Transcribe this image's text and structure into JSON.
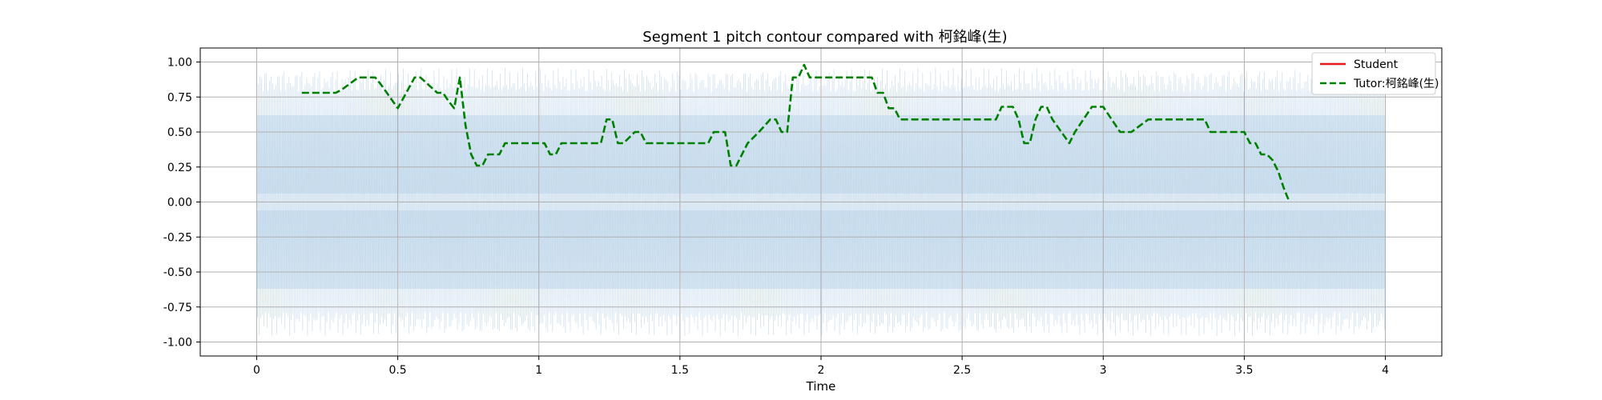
{
  "chart_data": {
    "type": "line",
    "title": "Segment 1 pitch contour compared with 柯銘峰(生)",
    "xlabel": "Time",
    "ylabel": "",
    "xlim": [
      -0.2,
      4.2
    ],
    "ylim": [
      -1.1,
      1.1
    ],
    "x_ticks": [
      0,
      0.5,
      1,
      1.5,
      2,
      2.5,
      3,
      3.5,
      4
    ],
    "x_tick_labels": [
      "0",
      "0.5",
      "1",
      "1.5",
      "2",
      "2.5",
      "3",
      "3.5",
      "4"
    ],
    "y_ticks": [
      1.0,
      0.75,
      0.5,
      0.25,
      0.0,
      -0.25,
      -0.5,
      -0.75,
      -1.0
    ],
    "y_tick_labels": [
      "1.00",
      "0.75",
      "0.50",
      "0.25",
      "0.00",
      "-0.25",
      "-0.50",
      "-0.75",
      "-1.00"
    ],
    "grid": true,
    "legend_position": "upper right",
    "waveform": {
      "x_range": [
        0,
        4
      ],
      "amplitude": 0.96,
      "color": "#a9c8e3"
    },
    "series": [
      {
        "name": "Student",
        "color": "#e31a1c",
        "style": "solid",
        "x": [],
        "y": []
      },
      {
        "name": "Tutor:柯銘峰(生)",
        "color": "#008000",
        "style": "dashed",
        "x": [
          0.16,
          0.28,
          0.3,
          0.36,
          0.42,
          0.44,
          0.5,
          0.56,
          0.58,
          0.64,
          0.66,
          0.68,
          0.7,
          0.72,
          0.74,
          0.76,
          0.78,
          0.8,
          0.82,
          0.86,
          0.88,
          1.02,
          1.04,
          1.06,
          1.08,
          1.22,
          1.24,
          1.26,
          1.28,
          1.3,
          1.34,
          1.36,
          1.38,
          1.4,
          1.6,
          1.62,
          1.66,
          1.68,
          1.7,
          1.74,
          1.78,
          1.82,
          1.84,
          1.86,
          1.88,
          1.9,
          1.92,
          1.94,
          1.96,
          2.16,
          2.18,
          2.2,
          2.22,
          2.24,
          2.26,
          2.28,
          2.6,
          2.62,
          2.64,
          2.68,
          2.7,
          2.72,
          2.74,
          2.76,
          2.78,
          2.8,
          2.82,
          2.88,
          2.9,
          2.96,
          3.0,
          3.06,
          3.1,
          3.16,
          3.18,
          3.36,
          3.38,
          3.5,
          3.52,
          3.54,
          3.56,
          3.58,
          3.6,
          3.62,
          3.64,
          3.66
        ],
        "y": [
          0.78,
          0.78,
          0.8,
          0.89,
          0.89,
          0.84,
          0.67,
          0.89,
          0.89,
          0.78,
          0.78,
          0.72,
          0.67,
          0.89,
          0.55,
          0.34,
          0.26,
          0.26,
          0.34,
          0.34,
          0.42,
          0.42,
          0.34,
          0.34,
          0.42,
          0.42,
          0.59,
          0.59,
          0.42,
          0.42,
          0.5,
          0.5,
          0.42,
          0.42,
          0.42,
          0.5,
          0.5,
          0.26,
          0.26,
          0.42,
          0.5,
          0.59,
          0.59,
          0.5,
          0.5,
          0.89,
          0.89,
          0.98,
          0.89,
          0.89,
          0.89,
          0.78,
          0.78,
          0.67,
          0.67,
          0.59,
          0.59,
          0.59,
          0.68,
          0.68,
          0.59,
          0.42,
          0.42,
          0.59,
          0.68,
          0.68,
          0.59,
          0.42,
          0.5,
          0.68,
          0.68,
          0.5,
          0.5,
          0.59,
          0.59,
          0.59,
          0.5,
          0.5,
          0.42,
          0.42,
          0.34,
          0.34,
          0.3,
          0.22,
          0.1,
          0.0
        ]
      }
    ]
  }
}
